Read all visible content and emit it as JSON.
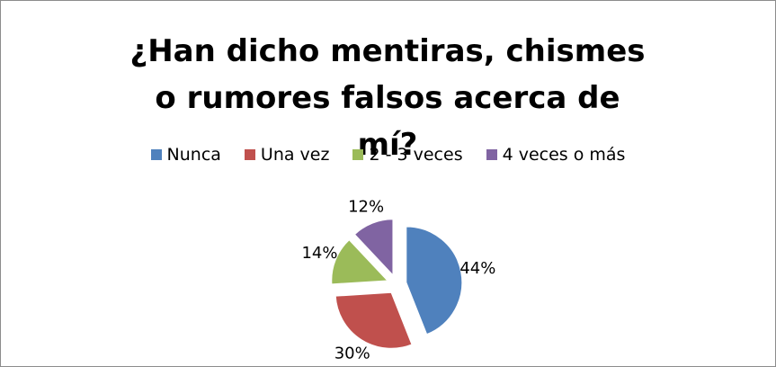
{
  "chart_data": {
    "type": "pie",
    "title": "¿Han dicho mentiras, chismes o rumores falsos acerca de mí?",
    "categories": [
      "Nunca",
      "Una vez",
      "2 - 3 veces",
      "4 veces o más"
    ],
    "values": [
      44,
      30,
      14,
      12
    ],
    "value_labels": [
      "44%",
      "30%",
      "14%",
      "12%"
    ],
    "colors": [
      "#4f81bd",
      "#c0504d",
      "#9bbb59",
      "#8064a2"
    ],
    "legend": "top"
  }
}
